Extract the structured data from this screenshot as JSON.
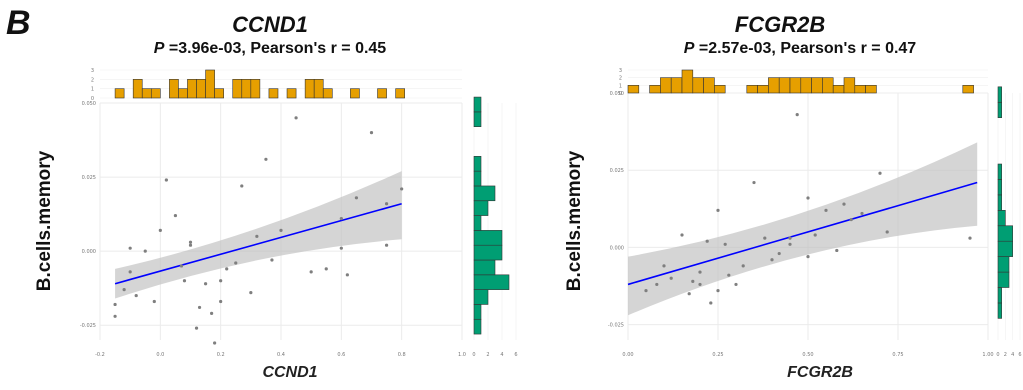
{
  "panel_letter": "B",
  "colors": {
    "top_hist": "#E69F00",
    "side_hist": "#009E73",
    "line": "#0000FF",
    "ribbon": "#BEBEBE",
    "point": "#7F7F7F"
  },
  "chart_data": [
    {
      "type": "scatter",
      "title": "CCND1",
      "subtitle_prefix": "P",
      "subtitle_rest": " =3.96e-03, Pearson's r = 0.45",
      "xlabel": "CCND1",
      "ylabel": "B.cells.memory",
      "xlim": [
        -0.2,
        1.0
      ],
      "ylim": [
        -0.03,
        0.05
      ],
      "xticks": [
        -0.2,
        0.0,
        0.2,
        0.4,
        0.6,
        0.8,
        1.0
      ],
      "xtick_labels": [
        "-0.2",
        "0.0",
        "0.2",
        "0.4",
        "0.6",
        "0.8",
        "1.0"
      ],
      "yticks": [
        -0.025,
        0.0,
        0.025,
        0.05
      ],
      "ytick_labels": [
        "-0.025",
        "0.000",
        "0.025",
        "0.050"
      ],
      "x": [
        -0.15,
        -0.15,
        -0.12,
        -0.1,
        -0.1,
        -0.08,
        -0.05,
        -0.02,
        0.0,
        0.02,
        0.05,
        0.07,
        0.08,
        0.1,
        0.1,
        0.12,
        0.13,
        0.15,
        0.17,
        0.18,
        0.2,
        0.2,
        0.22,
        0.25,
        0.27,
        0.3,
        0.32,
        0.35,
        0.37,
        0.4,
        0.45,
        0.5,
        0.55,
        0.6,
        0.6,
        0.62,
        0.65,
        0.7,
        0.75,
        0.75,
        0.8
      ],
      "y": [
        -0.022,
        -0.018,
        -0.013,
        -0.007,
        0.001,
        -0.015,
        0.0,
        -0.017,
        0.007,
        0.024,
        0.012,
        -0.005,
        -0.01,
        0.002,
        0.003,
        -0.026,
        -0.019,
        -0.011,
        -0.021,
        -0.031,
        -0.01,
        -0.017,
        -0.006,
        -0.004,
        0.022,
        -0.014,
        0.005,
        0.031,
        -0.003,
        0.007,
        0.045,
        -0.007,
        -0.006,
        0.011,
        0.001,
        -0.008,
        0.018,
        0.04,
        0.016,
        0.002,
        0.021
      ],
      "fit": {
        "x0": -0.15,
        "y0": -0.011,
        "x1": 0.8,
        "y1": 0.016
      },
      "ci": {
        "lo0": -0.016,
        "hi0": -0.006,
        "lo1": 0.004,
        "hi1": 0.027
      },
      "top_hist": {
        "ylim": [
          0,
          3
        ],
        "ytick_labels": [
          "0",
          "1",
          "2",
          "3"
        ],
        "bins": [
          -0.15,
          -0.12,
          -0.09,
          -0.06,
          -0.03,
          0.0,
          0.03,
          0.06,
          0.09,
          0.12,
          0.15,
          0.18,
          0.21,
          0.24,
          0.27,
          0.3,
          0.33,
          0.36,
          0.39,
          0.42,
          0.45,
          0.48,
          0.51,
          0.54,
          0.57,
          0.6,
          0.63,
          0.66,
          0.69,
          0.72,
          0.75,
          0.78
        ],
        "counts": [
          1,
          0,
          2,
          1,
          1,
          0,
          2,
          1,
          2,
          2,
          3,
          1,
          0,
          2,
          2,
          2,
          0,
          1,
          0,
          1,
          0,
          2,
          2,
          1,
          0,
          0,
          1,
          0,
          0,
          1,
          0,
          1
        ]
      },
      "side_hist": {
        "xlim": [
          0,
          6
        ],
        "xtick_labels": [
          "0",
          "2",
          "4",
          "6"
        ],
        "bins": [
          -0.028,
          -0.023,
          -0.018,
          -0.013,
          -0.008,
          -0.003,
          0.002,
          0.007,
          0.012,
          0.017,
          0.022,
          0.027,
          0.032,
          0.037,
          0.042,
          0.047
        ],
        "counts": [
          1,
          1,
          2,
          5,
          3,
          4,
          4,
          1,
          2,
          3,
          1,
          1,
          0,
          0,
          1,
          1
        ]
      }
    },
    {
      "type": "scatter",
      "title": "FCGR2B",
      "subtitle_prefix": "P",
      "subtitle_rest": " =2.57e-03, Pearson's r = 0.47",
      "xlabel": "FCGR2B",
      "ylabel": "B.cells.memory",
      "xlim": [
        0.0,
        1.0
      ],
      "ylim": [
        -0.03,
        0.05
      ],
      "xticks": [
        0.0,
        0.25,
        0.5,
        0.75,
        1.0
      ],
      "xtick_labels": [
        "0.00",
        "0.25",
        "0.50",
        "0.75",
        "1.00"
      ],
      "yticks": [
        -0.025,
        0.0,
        0.025,
        0.05
      ],
      "ytick_labels": [
        "-0.025",
        "0.000",
        "0.025",
        "0.050"
      ],
      "x": [
        0.05,
        0.08,
        0.1,
        0.12,
        0.15,
        0.17,
        0.18,
        0.2,
        0.2,
        0.22,
        0.23,
        0.25,
        0.25,
        0.27,
        0.28,
        0.3,
        0.32,
        0.35,
        0.38,
        0.4,
        0.42,
        0.45,
        0.45,
        0.47,
        0.5,
        0.5,
        0.52,
        0.55,
        0.58,
        0.6,
        0.62,
        0.65,
        0.7,
        0.72,
        0.95
      ],
      "y": [
        -0.014,
        -0.012,
        -0.006,
        -0.01,
        0.004,
        -0.015,
        -0.011,
        -0.008,
        -0.012,
        0.002,
        -0.018,
        0.012,
        -0.014,
        0.001,
        -0.009,
        -0.012,
        -0.006,
        0.021,
        0.003,
        -0.004,
        -0.002,
        0.003,
        0.001,
        0.043,
        -0.003,
        0.016,
        0.004,
        0.012,
        -0.001,
        0.014,
        0.009,
        0.011,
        0.024,
        0.005,
        0.003
      ],
      "fit": {
        "x0": 0.0,
        "y0": -0.012,
        "x1": 0.97,
        "y1": 0.021
      },
      "ci": {
        "lo0": -0.022,
        "hi0": -0.003,
        "lo1": 0.007,
        "hi1": 0.034
      },
      "top_hist": {
        "ylim": [
          0,
          3
        ],
        "ytick_labels": [
          "0",
          "1",
          "2",
          "3"
        ],
        "bins": [
          0.0,
          0.03,
          0.06,
          0.09,
          0.12,
          0.15,
          0.18,
          0.21,
          0.24,
          0.27,
          0.3,
          0.33,
          0.36,
          0.39,
          0.42,
          0.45,
          0.48,
          0.51,
          0.54,
          0.57,
          0.6,
          0.63,
          0.66,
          0.69,
          0.72,
          0.75,
          0.78,
          0.81,
          0.84,
          0.87,
          0.9,
          0.93,
          0.96
        ],
        "counts": [
          1,
          0,
          1,
          2,
          2,
          3,
          2,
          2,
          1,
          0,
          0,
          1,
          1,
          2,
          2,
          2,
          2,
          2,
          2,
          1,
          2,
          1,
          1,
          0,
          0,
          0,
          0,
          0,
          0,
          0,
          0,
          1,
          0
        ]
      },
      "side_hist": {
        "xlim": [
          0,
          6
        ],
        "xtick_labels": [
          "0",
          "2",
          "4",
          "6"
        ],
        "bins": [
          -0.028,
          -0.023,
          -0.018,
          -0.013,
          -0.008,
          -0.003,
          0.002,
          0.007,
          0.012,
          0.017,
          0.022,
          0.027,
          0.032,
          0.037,
          0.042,
          0.047
        ],
        "counts": [
          0,
          1,
          1,
          3,
          3,
          4,
          4,
          2,
          1,
          1,
          1,
          0,
          0,
          0,
          1,
          1
        ]
      }
    }
  ]
}
